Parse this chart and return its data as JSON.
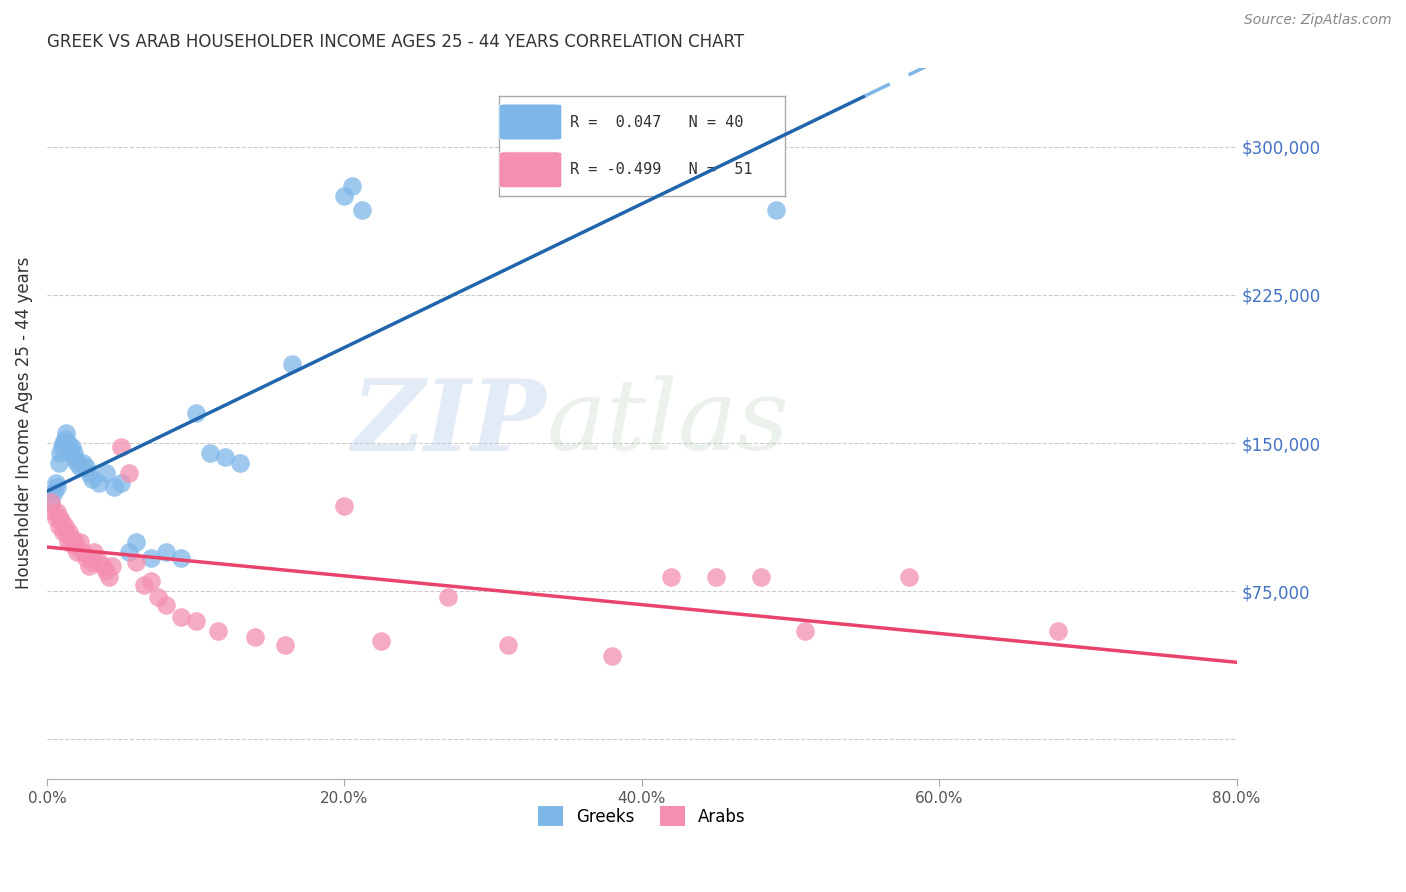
{
  "title": "GREEK VS ARAB HOUSEHOLDER INCOME AGES 25 - 44 YEARS CORRELATION CHART",
  "source": "Source: ZipAtlas.com",
  "xlabel_ticks": [
    "0.0%",
    "20.0%",
    "40.0%",
    "60.0%",
    "80.0%"
  ],
  "xlabel_tick_vals": [
    0.0,
    0.2,
    0.4,
    0.6,
    0.8
  ],
  "ylabel": "Householder Income Ages 25 - 44 years",
  "ytick_vals": [
    0,
    75000,
    150000,
    225000,
    300000
  ],
  "yright_labels": [
    "$75,000",
    "$150,000",
    "$225,000",
    "$300,000"
  ],
  "yright_vals": [
    75000,
    150000,
    225000,
    300000
  ],
  "xlim": [
    0.0,
    0.8
  ],
  "ylim": [
    -20000,
    340000
  ],
  "greek_R": 0.047,
  "greek_N": 40,
  "arab_R": -0.499,
  "arab_N": 51,
  "greek_color": "#7EB6E8",
  "arab_color": "#F48FB1",
  "greek_line_color": "#2166AC",
  "arab_line_color": "#E8436A",
  "dashed_line_color": "#7EB6E8",
  "watermark_zip": "ZIP",
  "watermark_atlas": "atlas",
  "greek_points": [
    [
      0.003,
      120000
    ],
    [
      0.005,
      125000
    ],
    [
      0.006,
      130000
    ],
    [
      0.007,
      128000
    ],
    [
      0.008,
      140000
    ],
    [
      0.009,
      145000
    ],
    [
      0.01,
      148000
    ],
    [
      0.011,
      150000
    ],
    [
      0.012,
      152000
    ],
    [
      0.013,
      155000
    ],
    [
      0.014,
      150000
    ],
    [
      0.015,
      148000
    ],
    [
      0.016,
      145000
    ],
    [
      0.017,
      148000
    ],
    [
      0.018,
      145000
    ],
    [
      0.019,
      142000
    ],
    [
      0.02,
      140000
    ],
    [
      0.022,
      138000
    ],
    [
      0.024,
      140000
    ],
    [
      0.026,
      138000
    ],
    [
      0.028,
      135000
    ],
    [
      0.03,
      132000
    ],
    [
      0.035,
      130000
    ],
    [
      0.04,
      135000
    ],
    [
      0.045,
      128000
    ],
    [
      0.05,
      130000
    ],
    [
      0.055,
      95000
    ],
    [
      0.06,
      100000
    ],
    [
      0.07,
      92000
    ],
    [
      0.08,
      95000
    ],
    [
      0.09,
      92000
    ],
    [
      0.1,
      165000
    ],
    [
      0.11,
      145000
    ],
    [
      0.12,
      143000
    ],
    [
      0.13,
      140000
    ],
    [
      0.165,
      190000
    ],
    [
      0.2,
      275000
    ],
    [
      0.205,
      280000
    ],
    [
      0.212,
      268000
    ],
    [
      0.49,
      268000
    ]
  ],
  "arab_points": [
    [
      0.003,
      120000
    ],
    [
      0.005,
      115000
    ],
    [
      0.006,
      112000
    ],
    [
      0.007,
      115000
    ],
    [
      0.008,
      108000
    ],
    [
      0.009,
      112000
    ],
    [
      0.01,
      110000
    ],
    [
      0.011,
      105000
    ],
    [
      0.012,
      108000
    ],
    [
      0.013,
      105000
    ],
    [
      0.014,
      100000
    ],
    [
      0.015,
      105000
    ],
    [
      0.016,
      100000
    ],
    [
      0.017,
      102000
    ],
    [
      0.018,
      98000
    ],
    [
      0.019,
      100000
    ],
    [
      0.02,
      95000
    ],
    [
      0.022,
      100000
    ],
    [
      0.024,
      95000
    ],
    [
      0.026,
      92000
    ],
    [
      0.028,
      88000
    ],
    [
      0.03,
      90000
    ],
    [
      0.032,
      95000
    ],
    [
      0.035,
      90000
    ],
    [
      0.038,
      88000
    ],
    [
      0.04,
      85000
    ],
    [
      0.042,
      82000
    ],
    [
      0.044,
      88000
    ],
    [
      0.05,
      148000
    ],
    [
      0.055,
      135000
    ],
    [
      0.06,
      90000
    ],
    [
      0.065,
      78000
    ],
    [
      0.07,
      80000
    ],
    [
      0.075,
      72000
    ],
    [
      0.08,
      68000
    ],
    [
      0.09,
      62000
    ],
    [
      0.1,
      60000
    ],
    [
      0.115,
      55000
    ],
    [
      0.14,
      52000
    ],
    [
      0.16,
      48000
    ],
    [
      0.2,
      118000
    ],
    [
      0.225,
      50000
    ],
    [
      0.27,
      72000
    ],
    [
      0.31,
      48000
    ],
    [
      0.38,
      42000
    ],
    [
      0.42,
      82000
    ],
    [
      0.45,
      82000
    ],
    [
      0.48,
      82000
    ],
    [
      0.51,
      55000
    ],
    [
      0.58,
      82000
    ],
    [
      0.68,
      55000
    ]
  ]
}
